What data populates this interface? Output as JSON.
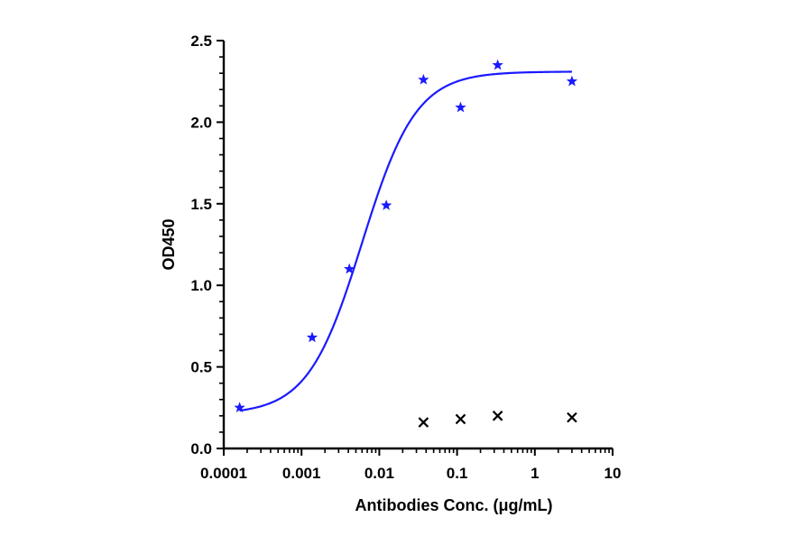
{
  "chart_data": {
    "type": "scatter",
    "xlabel": "Antibodies Conc. (μg/mL)",
    "ylabel": "OD450",
    "x_scale": "log",
    "xlim": [
      0.0001,
      10
    ],
    "ylim": [
      0,
      2.5
    ],
    "x_ticks": [
      "0.0001",
      "0.001",
      "0.01",
      "0.1",
      "1",
      "10"
    ],
    "y_ticks": [
      "0.0",
      "0.5",
      "1.0",
      "1.5",
      "2.0",
      "2.5"
    ],
    "grid": false,
    "legend": "none",
    "series": [
      {
        "marker": "star",
        "color": "#1a1aff",
        "fit": "4PL",
        "x": [
          0.00016,
          0.00137,
          0.00412,
          0.0123,
          0.037,
          0.111,
          0.333,
          3.0
        ],
        "y": [
          0.25,
          0.68,
          1.1,
          1.49,
          2.26,
          2.09,
          2.35,
          2.25
        ]
      },
      {
        "marker": "x",
        "color": "#000000",
        "x": [
          0.037,
          0.111,
          0.333,
          3.0
        ],
        "y": [
          0.16,
          0.18,
          0.2,
          0.19
        ]
      }
    ],
    "fit_curve": {
      "bottom": 0.21,
      "top": 2.31,
      "ec50": 0.006,
      "hill": 1.25,
      "x_range": [
        0.00016,
        3.0
      ]
    }
  }
}
